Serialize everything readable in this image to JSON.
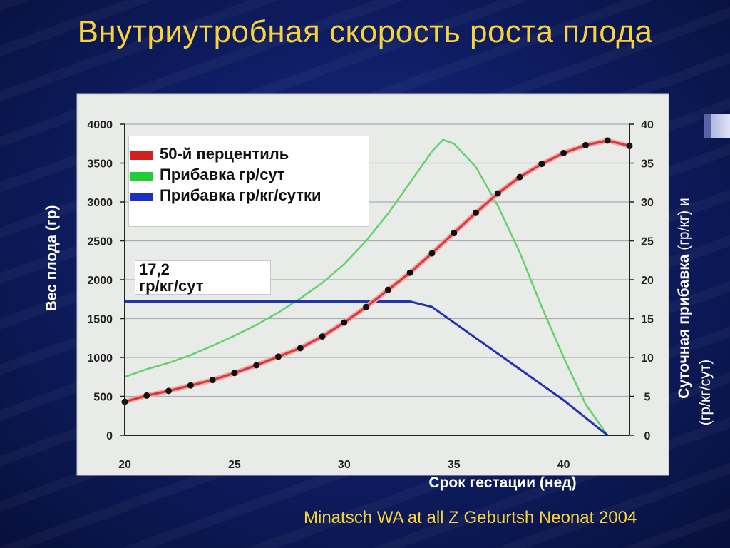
{
  "slide": {
    "title": "Внутриутробная скорость роста плода",
    "citation": "Minatsch WA at all Z Geburtsh Neonat 2004"
  },
  "colors": {
    "background": "#0f1e66",
    "title": "#f7d23a",
    "weight_curve": "#d23b3b",
    "gain_g_day": "#62d26a",
    "gain_g_kg_day": "#2233b0"
  },
  "chart_data": {
    "type": "line",
    "xlabel": "Срок гестации (нед)",
    "ylabel_left": "Вес плода (гр)",
    "ylabel_right_line1_bold": "Суточная прибавка",
    "ylabel_right_line1_rest": " (гр/кг) и",
    "ylabel_right_line2": "(гр/кг/сут)",
    "xlim": [
      20,
      43
    ],
    "ylim_left": [
      0,
      4000
    ],
    "ylim_right": [
      0,
      40
    ],
    "x_ticks": [
      20,
      25,
      30,
      35,
      40
    ],
    "y_left_ticks": [
      0,
      500,
      1000,
      1500,
      2000,
      2500,
      3000,
      3500,
      4000
    ],
    "y_right_ticks": [
      0,
      5,
      10,
      15,
      20,
      25,
      30,
      35,
      40
    ],
    "grid": "horizontal",
    "legend_position": "top-left",
    "annotation": {
      "line1": "17,2",
      "line2": "гр/кг/сут"
    },
    "series": [
      {
        "name": "50-й перцентиль",
        "axis": "left",
        "markers": true,
        "x": [
          20,
          21,
          22,
          23,
          24,
          25,
          26,
          27,
          28,
          29,
          30,
          31,
          32,
          33,
          34,
          35,
          36,
          37,
          38,
          39,
          40,
          41,
          42,
          43
        ],
        "y": [
          430,
          510,
          570,
          640,
          710,
          800,
          900,
          1010,
          1120,
          1270,
          1450,
          1650,
          1870,
          2090,
          2340,
          2600,
          2860,
          3110,
          3320,
          3490,
          3630,
          3730,
          3790,
          3720
        ]
      },
      {
        "name": "Прибавка гр/сут",
        "axis": "right",
        "markers": false,
        "x": [
          20,
          21,
          22,
          23,
          24,
          25,
          26,
          27,
          28,
          29,
          30,
          31,
          32,
          33,
          34,
          34.5,
          35,
          36,
          37,
          38,
          39,
          40,
          41,
          42
        ],
        "y": [
          7.5,
          8.5,
          9.3,
          10.3,
          11.5,
          12.8,
          14.2,
          15.8,
          17.6,
          19.6,
          22,
          25,
          28.5,
          32.5,
          36.5,
          38,
          37.5,
          34.5,
          29.5,
          23.5,
          16.5,
          10,
          4,
          0
        ]
      },
      {
        "name": "Прибавка гр/кг/сутки",
        "axis": "right",
        "markers": false,
        "x": [
          20,
          33,
          34,
          36,
          38,
          40,
          42
        ],
        "y": [
          17.2,
          17.2,
          16.5,
          12.5,
          8.5,
          4.5,
          0
        ]
      }
    ]
  }
}
